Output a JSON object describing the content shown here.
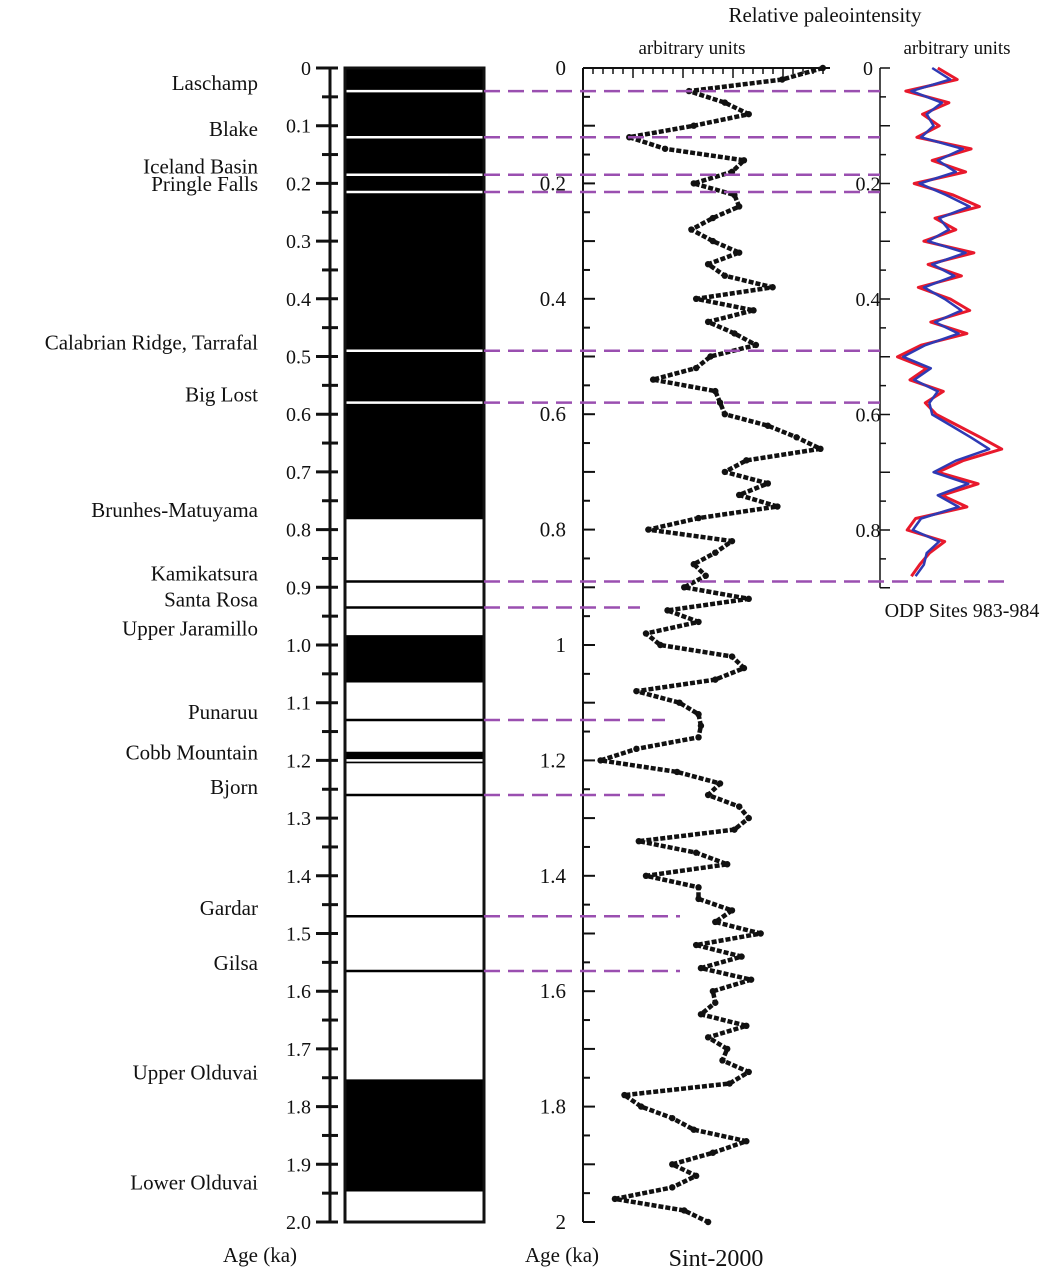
{
  "header": {
    "title": "Relative paleointensity",
    "sint_units": "arbitrary units",
    "odp_units": "arbitrary units"
  },
  "footer": {
    "age_label_left": "Age (ka)",
    "age_label_mid": "Age (ka)",
    "sint_name": "Sint-2000",
    "odp_name": "ODP Sites 983-984"
  },
  "colors": {
    "event_line": "#9a4fb0",
    "sint_curve": "#111111",
    "odp_series_a": "#e8192c",
    "odp_series_b": "#2e3ab4"
  },
  "age_axis_left": {
    "range": [
      0,
      2.0
    ],
    "ticks": [
      {
        "v": 0,
        "label": "0"
      },
      {
        "v": 0.1,
        "label": "0.1"
      },
      {
        "v": 0.2,
        "label": "0.2"
      },
      {
        "v": 0.3,
        "label": "0.3"
      },
      {
        "v": 0.4,
        "label": "0.4"
      },
      {
        "v": 0.5,
        "label": "0.5"
      },
      {
        "v": 0.6,
        "label": "0.6"
      },
      {
        "v": 0.7,
        "label": "0.7"
      },
      {
        "v": 0.8,
        "label": "0.8"
      },
      {
        "v": 0.9,
        "label": "0.9"
      },
      {
        "v": 1.0,
        "label": "1.0"
      },
      {
        "v": 1.1,
        "label": "1.1"
      },
      {
        "v": 1.2,
        "label": "1.2"
      },
      {
        "v": 1.3,
        "label": "1.3"
      },
      {
        "v": 1.4,
        "label": "1.4"
      },
      {
        "v": 1.5,
        "label": "1.5"
      },
      {
        "v": 1.6,
        "label": "1.6"
      },
      {
        "v": 1.7,
        "label": "1.7"
      },
      {
        "v": 1.8,
        "label": "1.8"
      },
      {
        "v": 1.9,
        "label": "1.9"
      },
      {
        "v": 2.0,
        "label": "2.0"
      }
    ]
  },
  "chart_data": [
    {
      "type": "table",
      "name": "polarity-timescale",
      "age_unit": "Ma",
      "normal_polarity_intervals": [
        [
          0,
          0.78
        ],
        [
          0.985,
          1.065
        ],
        [
          1.185,
          1.205
        ],
        [
          1.755,
          1.945
        ]
      ],
      "events": [
        {
          "label": "Laschamp",
          "age": 0.04
        },
        {
          "label": "Blake",
          "age": 0.12
        },
        {
          "label": "Iceland Basin",
          "age": 0.185
        },
        {
          "label": "Pringle Falls",
          "age": 0.215
        },
        {
          "label": "Calabrian Ridge, Tarrafal",
          "age": 0.49
        },
        {
          "label": "Big Lost",
          "age": 0.58
        },
        {
          "label": "Brunhes-Matuyama",
          "age": 0.78
        },
        {
          "label": "Kamikatsura",
          "age": 0.89
        },
        {
          "label": "Santa Rosa",
          "age": 0.935
        },
        {
          "label": "Upper Jaramillo",
          "age": 0.985
        },
        {
          "label": "Punaruu",
          "age": 1.13
        },
        {
          "label": "Cobb Mountain",
          "age": 1.2
        },
        {
          "label": "Bjorn",
          "age": 1.26
        },
        {
          "label": "Gardar",
          "age": 1.47
        },
        {
          "label": "Gilsa",
          "age": 1.565
        },
        {
          "label": "Upper Olduvai",
          "age": 1.755
        },
        {
          "label": "Lower Olduvai",
          "age": 1.945
        }
      ]
    },
    {
      "type": "line",
      "name": "Sint-2000",
      "xlabel": "arbitrary units",
      "ylabel": "Age (ka)",
      "ylim": [
        0,
        2
      ],
      "xlim": [
        0,
        10
      ],
      "y_ticks": [
        0,
        0.2,
        0.4,
        0.6,
        0.8,
        1,
        1.2,
        1.4,
        1.6,
        1.8,
        2
      ],
      "y_tick_labels": [
        "0",
        "0.2",
        "0.4",
        "0.6",
        "0.8",
        "1",
        "1.2",
        "1.4",
        "1.6",
        "1.8",
        "2"
      ],
      "series": [
        {
          "age": [
            0,
            0.02,
            0.04,
            0.06,
            0.08,
            0.1,
            0.12,
            0.14,
            0.16,
            0.18,
            0.2,
            0.22,
            0.24,
            0.26,
            0.28,
            0.3,
            0.32,
            0.34,
            0.36,
            0.38,
            0.4,
            0.42,
            0.44,
            0.46,
            0.48,
            0.5,
            0.52,
            0.54,
            0.56,
            0.58,
            0.6,
            0.62,
            0.64,
            0.66,
            0.68,
            0.7,
            0.72,
            0.74,
            0.76,
            0.78,
            0.8,
            0.82,
            0.84,
            0.86,
            0.88,
            0.9,
            0.92,
            0.94,
            0.96,
            0.98,
            1.0,
            1.02,
            1.04,
            1.06,
            1.08,
            1.1,
            1.12,
            1.14,
            1.16,
            1.18,
            1.2,
            1.22,
            1.24,
            1.26,
            1.28,
            1.3,
            1.32,
            1.34,
            1.36,
            1.38,
            1.4,
            1.42,
            1.44,
            1.46,
            1.48,
            1.5,
            1.52,
            1.54,
            1.56,
            1.58,
            1.6,
            1.62,
            1.64,
            1.66,
            1.68,
            1.7,
            1.72,
            1.74,
            1.76,
            1.78,
            1.8,
            1.82,
            1.84,
            1.86,
            1.88,
            1.9,
            1.92,
            1.94,
            1.96,
            1.98,
            2.0
          ],
          "intensity": [
            9.7,
            8.0,
            4.1,
            5.6,
            6.6,
            4.3,
            1.6,
            3.1,
            6.4,
            5.9,
            4.3,
            6.0,
            6.2,
            5.1,
            4.2,
            5.1,
            6.2,
            4.9,
            5.6,
            7.6,
            4.4,
            6.8,
            4.9,
            6.0,
            6.9,
            5.0,
            4.4,
            2.6,
            5.2,
            5.4,
            5.6,
            7.4,
            8.6,
            9.6,
            6.5,
            5.6,
            7.4,
            6.2,
            7.8,
            4.5,
            2.4,
            5.9,
            5.2,
            4.3,
            4.8,
            3.9,
            6.6,
            3.2,
            4.5,
            2.3,
            2.9,
            5.9,
            6.4,
            5.2,
            1.9,
            3.7,
            4.5,
            4.6,
            4.5,
            1.9,
            0.4,
            3.6,
            5.4,
            4.9,
            6.2,
            6.6,
            6.0,
            2.0,
            4.4,
            5.7,
            2.3,
            4.5,
            4.5,
            5.9,
            5.2,
            7.1,
            4.4,
            6.3,
            4.6,
            6.7,
            5.1,
            5.2,
            4.6,
            6.5,
            4.9,
            5.7,
            5.5,
            6.6,
            5.8,
            1.4,
            2.1,
            3.4,
            4.3,
            6.5,
            5.1,
            3.4,
            4.4,
            3.4,
            1.0,
            3.9,
            4.9
          ]
        }
      ]
    },
    {
      "type": "line",
      "name": "ODP Sites 983-984",
      "xlabel": "arbitrary units",
      "ylim": [
        0,
        0.9
      ],
      "y_ticks": [
        0,
        0.2,
        0.4,
        0.6,
        0.8
      ],
      "y_tick_labels": [
        "0",
        "0.2",
        "0.4",
        "0.6",
        "0.8"
      ],
      "series": [
        {
          "age": [
            0,
            0.02,
            0.04,
            0.06,
            0.08,
            0.1,
            0.12,
            0.14,
            0.16,
            0.18,
            0.2,
            0.22,
            0.24,
            0.26,
            0.28,
            0.3,
            0.32,
            0.34,
            0.36,
            0.38,
            0.4,
            0.42,
            0.44,
            0.46,
            0.48,
            0.5,
            0.52,
            0.54,
            0.56,
            0.58,
            0.6,
            0.62,
            0.64,
            0.66,
            0.68,
            0.7,
            0.72,
            0.74,
            0.76,
            0.78,
            0.8,
            0.82,
            0.84,
            0.86,
            0.88
          ],
          "intensity_a": [
            3.8,
            5.2,
            1.5,
            4.6,
            2.7,
            3.9,
            2.3,
            6.2,
            3.4,
            5.8,
            2.1,
            4.9,
            6.8,
            3.6,
            5.1,
            2.8,
            6.4,
            3.1,
            5.5,
            2.4,
            4.7,
            6.1,
            3.3,
            5.9,
            2.6,
            0.9,
            3.0,
            1.8,
            4.2,
            2.9,
            3.7,
            5.3,
            6.9,
            8.4,
            5.6,
            3.8,
            6.7,
            4.1,
            5.9,
            2.2,
            1.6,
            4.3,
            3.2,
            2.5,
            1.9
          ],
          "intensity_b": [
            3.4,
            4.7,
            1.9,
            4.1,
            3.0,
            3.5,
            2.6,
            5.6,
            3.8,
            5.1,
            2.5,
            4.4,
            6.1,
            3.9,
            4.6,
            3.1,
            5.8,
            3.4,
            5.0,
            2.8,
            4.3,
            5.5,
            3.6,
            5.3,
            2.9,
            1.3,
            3.3,
            2.1,
            3.8,
            3.2,
            3.4,
            4.8,
            6.2,
            7.5,
            5.1,
            3.5,
            6.0,
            3.8,
            5.3,
            2.6,
            2.0,
            3.9,
            3.0,
            2.8,
            2.2
          ]
        }
      ]
    }
  ]
}
